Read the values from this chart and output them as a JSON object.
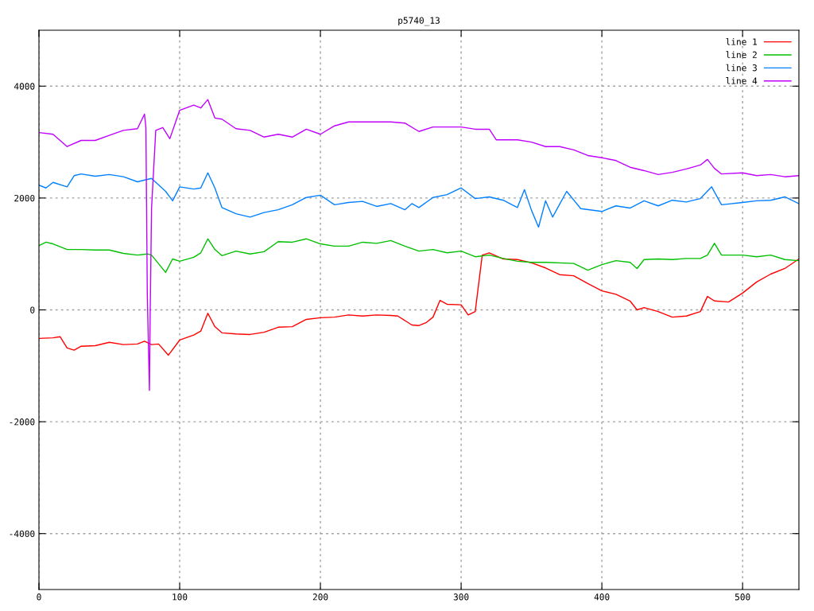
{
  "chart_data": {
    "type": "line",
    "title": "p5740_13",
    "xlim": [
      0,
      540
    ],
    "ylim": [
      -5000,
      5000
    ],
    "xticks": [
      0,
      100,
      200,
      300,
      400,
      500
    ],
    "yticks": [
      -4000,
      -2000,
      0,
      2000,
      4000
    ],
    "grid": true,
    "legend": "top right",
    "line_style": "solid",
    "marker": "none",
    "series": [
      {
        "name": "line 1",
        "color": "#ff0000",
        "x": [
          0,
          10,
          15,
          20,
          25,
          30,
          40,
          50,
          60,
          70,
          75,
          80,
          85,
          92,
          100,
          110,
          115,
          120,
          125,
          130,
          140,
          150,
          160,
          170,
          180,
          190,
          200,
          210,
          220,
          230,
          240,
          250,
          255,
          265,
          270,
          275,
          280,
          285,
          290,
          300,
          305,
          310,
          315,
          320,
          330,
          340,
          350,
          360,
          370,
          380,
          390,
          400,
          410,
          420,
          425,
          430,
          440,
          450,
          460,
          470,
          475,
          480,
          490,
          500,
          510,
          520,
          530,
          540
        ],
        "values": [
          -510,
          -500,
          -480,
          -680,
          -720,
          -650,
          -640,
          -580,
          -620,
          -610,
          -560,
          -620,
          -610,
          -810,
          -540,
          -450,
          -380,
          -60,
          -300,
          -410,
          -430,
          -440,
          -400,
          -310,
          -300,
          -170,
          -140,
          -130,
          -90,
          -110,
          -90,
          -100,
          -110,
          -270,
          -280,
          -230,
          -130,
          170,
          100,
          90,
          -90,
          -30,
          980,
          1020,
          910,
          900,
          840,
          750,
          630,
          610,
          470,
          340,
          280,
          160,
          0,
          40,
          -30,
          -130,
          -110,
          -30,
          240,
          160,
          140,
          300,
          500,
          640,
          740,
          910
        ]
      },
      {
        "name": "line 2",
        "color": "#00c000",
        "x": [
          0,
          5,
          10,
          20,
          30,
          40,
          50,
          60,
          70,
          77,
          80,
          90,
          95,
          100,
          110,
          115,
          120,
          125,
          130,
          140,
          150,
          160,
          170,
          180,
          190,
          200,
          210,
          220,
          230,
          240,
          250,
          260,
          270,
          280,
          290,
          300,
          310,
          320,
          330,
          340,
          350,
          360,
          380,
          390,
          400,
          410,
          420,
          425,
          430,
          440,
          450,
          460,
          470,
          475,
          480,
          485,
          500,
          510,
          520,
          530,
          540
        ],
        "values": [
          1150,
          1210,
          1180,
          1080,
          1080,
          1070,
          1070,
          1010,
          980,
          1000,
          980,
          670,
          910,
          870,
          940,
          1020,
          1270,
          1080,
          970,
          1050,
          1000,
          1040,
          1220,
          1210,
          1270,
          1180,
          1140,
          1140,
          1210,
          1190,
          1240,
          1140,
          1050,
          1080,
          1020,
          1050,
          950,
          980,
          920,
          870,
          850,
          850,
          830,
          710,
          810,
          880,
          850,
          740,
          900,
          910,
          900,
          920,
          920,
          980,
          1190,
          980,
          980,
          950,
          980,
          900,
          880
        ]
      },
      {
        "name": "line 3",
        "color": "#0080ff",
        "x": [
          0,
          5,
          10,
          20,
          25,
          30,
          40,
          50,
          60,
          70,
          80,
          90,
          95,
          100,
          110,
          115,
          120,
          125,
          130,
          140,
          150,
          160,
          170,
          180,
          190,
          200,
          210,
          220,
          230,
          240,
          250,
          260,
          265,
          270,
          280,
          290,
          300,
          310,
          320,
          330,
          340,
          345,
          350,
          355,
          360,
          365,
          375,
          385,
          400,
          410,
          420,
          430,
          440,
          450,
          460,
          470,
          478,
          485,
          500,
          510,
          520,
          530,
          540
        ],
        "values": [
          2230,
          2180,
          2280,
          2200,
          2400,
          2430,
          2390,
          2420,
          2380,
          2290,
          2350,
          2120,
          1950,
          2200,
          2160,
          2180,
          2450,
          2180,
          1830,
          1720,
          1660,
          1740,
          1790,
          1880,
          2010,
          2050,
          1880,
          1920,
          1940,
          1850,
          1900,
          1790,
          1900,
          1830,
          2010,
          2060,
          2180,
          1990,
          2020,
          1960,
          1830,
          2150,
          1780,
          1480,
          1950,
          1660,
          2120,
          1810,
          1760,
          1860,
          1820,
          1950,
          1860,
          1960,
          1930,
          1990,
          2200,
          1880,
          1920,
          1950,
          1960,
          2020,
          1900
        ]
      },
      {
        "name": "line 4",
        "color": "#c000ff",
        "x": [
          0,
          10,
          20,
          30,
          40,
          50,
          60,
          70,
          75,
          76,
          77,
          78,
          78.5,
          79,
          80,
          83,
          88,
          93,
          100,
          110,
          115,
          120,
          125,
          130,
          140,
          150,
          160,
          170,
          180,
          190,
          200,
          210,
          220,
          230,
          240,
          250,
          260,
          270,
          280,
          290,
          300,
          310,
          320,
          325,
          340,
          350,
          360,
          370,
          380,
          390,
          400,
          410,
          420,
          430,
          440,
          450,
          460,
          470,
          475,
          480,
          485,
          500,
          510,
          520,
          530,
          540
        ],
        "values": [
          3170,
          3140,
          2920,
          3030,
          3030,
          3120,
          3210,
          3240,
          3500,
          3260,
          270,
          -870,
          -1440,
          -160,
          1810,
          3210,
          3260,
          3060,
          3570,
          3660,
          3610,
          3760,
          3430,
          3410,
          3240,
          3210,
          3090,
          3140,
          3090,
          3230,
          3140,
          3290,
          3360,
          3360,
          3360,
          3360,
          3340,
          3190,
          3270,
          3270,
          3270,
          3230,
          3230,
          3040,
          3040,
          3000,
          2920,
          2920,
          2860,
          2760,
          2720,
          2670,
          2550,
          2490,
          2420,
          2460,
          2520,
          2590,
          2690,
          2530,
          2430,
          2450,
          2400,
          2420,
          2380,
          2400
        ]
      }
    ]
  }
}
